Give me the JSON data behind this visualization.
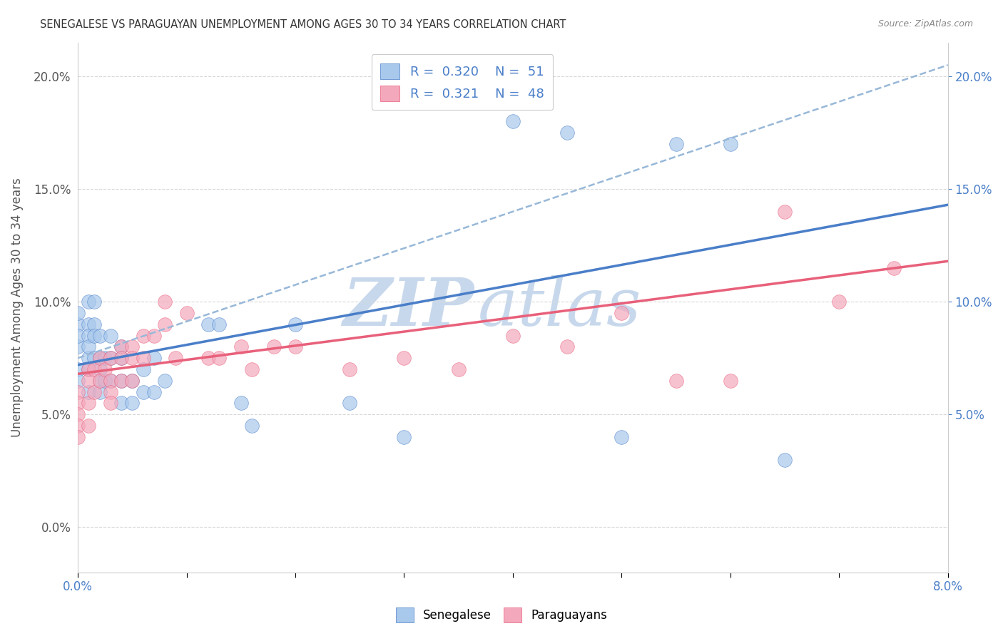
{
  "title": "SENEGALESE VS PARAGUAYAN UNEMPLOYMENT AMONG AGES 30 TO 34 YEARS CORRELATION CHART",
  "source": "Source: ZipAtlas.com",
  "ylabel": "Unemployment Among Ages 30 to 34 years",
  "senegalese_R": "0.320",
  "senegalese_N": "51",
  "paraguayan_R": "0.321",
  "paraguayan_N": "48",
  "blue_color": "#A8C8EC",
  "pink_color": "#F4A8BC",
  "blue_line_color": "#4A7EC8",
  "pink_line_color": "#E8607A",
  "dashed_line_color": "#98B8D8",
  "legend_R_color": "#4A7EC8",
  "watermark_color": "#C8D8EC",
  "title_fontsize": 10.5,
  "senegalese_x": [
    0.0,
    0.0,
    0.0,
    0.0,
    0.0,
    0.0,
    0.001,
    0.001,
    0.001,
    0.001,
    0.001,
    0.001,
    0.001,
    0.0015,
    0.0015,
    0.0015,
    0.0015,
    0.002,
    0.002,
    0.002,
    0.002,
    0.002,
    0.0025,
    0.0025,
    0.003,
    0.003,
    0.003,
    0.004,
    0.004,
    0.004,
    0.004,
    0.005,
    0.005,
    0.006,
    0.006,
    0.007,
    0.007,
    0.008,
    0.012,
    0.013,
    0.015,
    0.016,
    0.02,
    0.025,
    0.03,
    0.04,
    0.045,
    0.05,
    0.055,
    0.06,
    0.065
  ],
  "senegalese_y": [
    0.07,
    0.065,
    0.08,
    0.09,
    0.095,
    0.085,
    0.1,
    0.09,
    0.085,
    0.075,
    0.07,
    0.08,
    0.06,
    0.1,
    0.09,
    0.085,
    0.075,
    0.085,
    0.075,
    0.07,
    0.065,
    0.06,
    0.075,
    0.065,
    0.085,
    0.075,
    0.065,
    0.08,
    0.075,
    0.065,
    0.055,
    0.065,
    0.055,
    0.07,
    0.06,
    0.075,
    0.06,
    0.065,
    0.09,
    0.09,
    0.055,
    0.045,
    0.09,
    0.055,
    0.04,
    0.18,
    0.175,
    0.04,
    0.17,
    0.17,
    0.03
  ],
  "paraguayan_x": [
    0.0,
    0.0,
    0.0,
    0.0,
    0.0,
    0.001,
    0.001,
    0.001,
    0.001,
    0.0015,
    0.0015,
    0.002,
    0.002,
    0.0025,
    0.003,
    0.003,
    0.003,
    0.003,
    0.004,
    0.004,
    0.004,
    0.005,
    0.005,
    0.005,
    0.006,
    0.006,
    0.007,
    0.008,
    0.008,
    0.009,
    0.01,
    0.012,
    0.013,
    0.015,
    0.016,
    0.018,
    0.02,
    0.025,
    0.03,
    0.035,
    0.04,
    0.045,
    0.05,
    0.055,
    0.06,
    0.065,
    0.07,
    0.075
  ],
  "paraguayan_y": [
    0.06,
    0.055,
    0.05,
    0.045,
    0.04,
    0.07,
    0.065,
    0.055,
    0.045,
    0.07,
    0.06,
    0.075,
    0.065,
    0.07,
    0.075,
    0.065,
    0.06,
    0.055,
    0.08,
    0.075,
    0.065,
    0.08,
    0.075,
    0.065,
    0.085,
    0.075,
    0.085,
    0.1,
    0.09,
    0.075,
    0.095,
    0.075,
    0.075,
    0.08,
    0.07,
    0.08,
    0.08,
    0.07,
    0.075,
    0.07,
    0.085,
    0.08,
    0.095,
    0.065,
    0.065,
    0.14,
    0.1,
    0.115
  ],
  "xlim": [
    0.0,
    0.08
  ],
  "ylim": [
    -0.02,
    0.215
  ],
  "xtick_positions": [
    0.0,
    0.01,
    0.02,
    0.03,
    0.04,
    0.05,
    0.06,
    0.07,
    0.08
  ],
  "xtick_labels": [
    "0.0%",
    "",
    "",
    "",
    "",
    "",
    "",
    "",
    "8.0%"
  ],
  "yticks": [
    0.0,
    0.05,
    0.1,
    0.15,
    0.2
  ],
  "yticks_right": [
    0.05,
    0.1,
    0.15,
    0.2
  ],
  "blue_trend_x": [
    0.0,
    0.08
  ],
  "blue_trend_y": [
    0.072,
    0.143
  ],
  "pink_trend_x": [
    0.0,
    0.08
  ],
  "pink_trend_y": [
    0.068,
    0.118
  ],
  "dashed_trend_x": [
    0.0,
    0.08
  ],
  "dashed_trend_y": [
    0.075,
    0.205
  ],
  "grid_color": "#D8D8D8",
  "spine_color": "#CCCCCC"
}
